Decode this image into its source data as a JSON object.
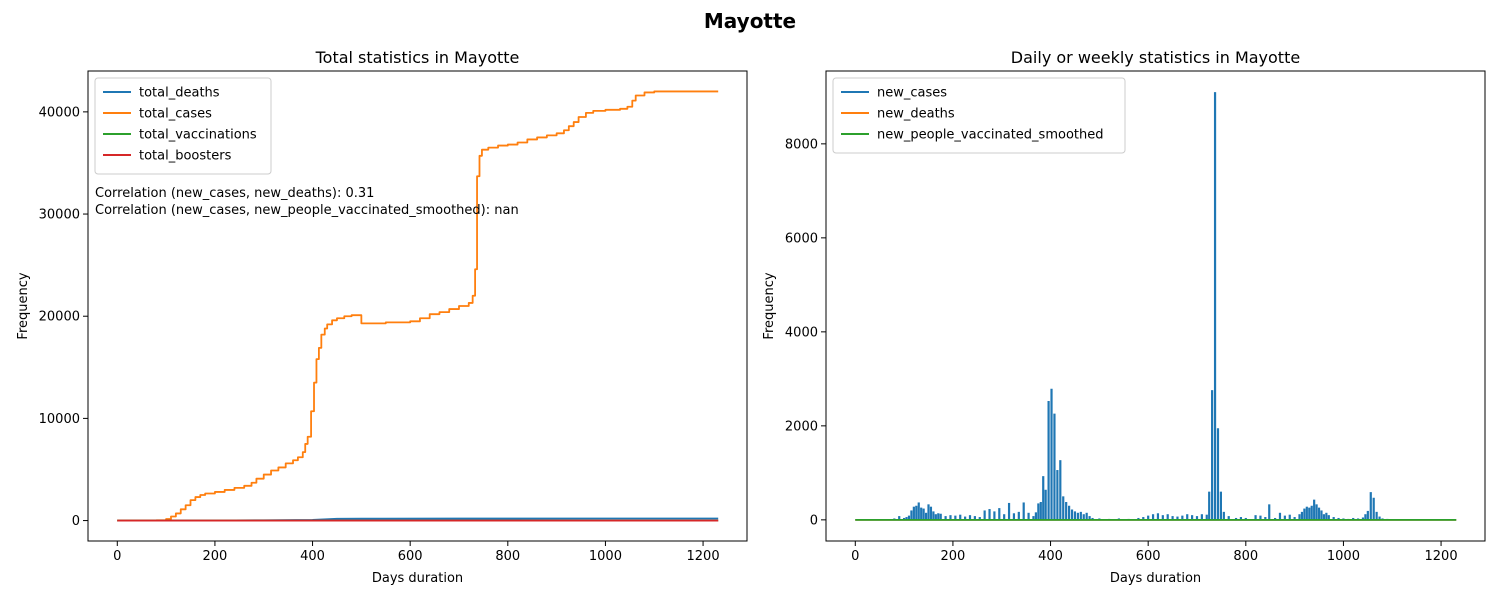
{
  "suptitle": "Mayotte",
  "chart_data": [
    {
      "type": "line",
      "title": "Total statistics in Mayotte",
      "xlabel": "Days duration",
      "ylabel": "Frequency",
      "xlim": [
        -60,
        1290
      ],
      "ylim": [
        -2000,
        44000
      ],
      "xticks": [
        0,
        200,
        400,
        600,
        800,
        1000,
        1200
      ],
      "yticks": [
        0,
        10000,
        20000,
        30000,
        40000
      ],
      "legend_position": "top-left",
      "annotations": [
        "Correlation (new_cases, new_deaths): 0.31",
        "Correlation (new_cases, new_people_vaccinated_smoothed): nan"
      ],
      "series": [
        {
          "name": "total_deaths",
          "color": "#1f77b4",
          "step": false,
          "points": [
            [
              0,
              0
            ],
            [
              100,
              2
            ],
            [
              200,
              10
            ],
            [
              300,
              30
            ],
            [
              400,
              60
            ],
            [
              450,
              170
            ],
            [
              500,
              185
            ],
            [
              700,
              195
            ],
            [
              1000,
              200
            ],
            [
              1231,
              200
            ]
          ]
        },
        {
          "name": "total_cases",
          "color": "#ff7f0e",
          "step": true,
          "points": [
            [
              0,
              0
            ],
            [
              80,
              30
            ],
            [
              100,
              150
            ],
            [
              110,
              400
            ],
            [
              120,
              700
            ],
            [
              130,
              1100
            ],
            [
              140,
              1500
            ],
            [
              150,
              2000
            ],
            [
              160,
              2300
            ],
            [
              170,
              2500
            ],
            [
              180,
              2650
            ],
            [
              200,
              2800
            ],
            [
              220,
              3000
            ],
            [
              240,
              3200
            ],
            [
              260,
              3400
            ],
            [
              275,
              3700
            ],
            [
              285,
              4100
            ],
            [
              300,
              4500
            ],
            [
              315,
              4900
            ],
            [
              330,
              5200
            ],
            [
              345,
              5600
            ],
            [
              360,
              5900
            ],
            [
              370,
              6200
            ],
            [
              380,
              6700
            ],
            [
              385,
              7500
            ],
            [
              390,
              8200
            ],
            [
              397,
              10700
            ],
            [
              403,
              13500
            ],
            [
              408,
              15800
            ],
            [
              413,
              16900
            ],
            [
              418,
              18200
            ],
            [
              425,
              18800
            ],
            [
              430,
              19200
            ],
            [
              440,
              19600
            ],
            [
              450,
              19800
            ],
            [
              465,
              20000
            ],
            [
              480,
              20100
            ],
            [
              497,
              20100
            ],
            [
              500,
              19300
            ],
            [
              550,
              19400
            ],
            [
              600,
              19500
            ],
            [
              620,
              19800
            ],
            [
              640,
              20200
            ],
            [
              660,
              20400
            ],
            [
              680,
              20700
            ],
            [
              700,
              21000
            ],
            [
              720,
              21300
            ],
            [
              728,
              22000
            ],
            [
              733,
              24600
            ],
            [
              737,
              33700
            ],
            [
              742,
              35700
            ],
            [
              747,
              36300
            ],
            [
              760,
              36500
            ],
            [
              780,
              36700
            ],
            [
              800,
              36800
            ],
            [
              820,
              37000
            ],
            [
              840,
              37300
            ],
            [
              860,
              37500
            ],
            [
              880,
              37700
            ],
            [
              900,
              37900
            ],
            [
              915,
              38200
            ],
            [
              925,
              38600
            ],
            [
              935,
              39000
            ],
            [
              945,
              39500
            ],
            [
              960,
              39900
            ],
            [
              975,
              40100
            ],
            [
              1000,
              40200
            ],
            [
              1030,
              40300
            ],
            [
              1045,
              40500
            ],
            [
              1055,
              41100
            ],
            [
              1062,
              41600
            ],
            [
              1080,
              41900
            ],
            [
              1100,
              42000
            ],
            [
              1231,
              42000
            ]
          ]
        },
        {
          "name": "total_vaccinations",
          "color": "#2ca02c",
          "step": false,
          "points": [
            [
              0,
              0
            ],
            [
              1231,
              0
            ]
          ]
        },
        {
          "name": "total_boosters",
          "color": "#d62728",
          "step": false,
          "points": [
            [
              0,
              0
            ],
            [
              1231,
              0
            ]
          ]
        }
      ]
    },
    {
      "type": "line",
      "title": "Daily or weekly statistics in Mayotte",
      "xlabel": "Days duration",
      "ylabel": "Frequency",
      "xlim": [
        -60,
        1290
      ],
      "ylim": [
        -450,
        9550
      ],
      "xticks": [
        0,
        200,
        400,
        600,
        800,
        1000,
        1200
      ],
      "yticks": [
        0,
        2000,
        4000,
        6000,
        8000
      ],
      "legend_position": "top-left",
      "series": [
        {
          "name": "new_cases",
          "color": "#1f77b4",
          "type": "spikes",
          "points": [
            [
              80,
              30
            ],
            [
              90,
              80
            ],
            [
              100,
              40
            ],
            [
              105,
              60
            ],
            [
              110,
              90
            ],
            [
              115,
              200
            ],
            [
              120,
              280
            ],
            [
              125,
              300
            ],
            [
              130,
              370
            ],
            [
              135,
              260
            ],
            [
              140,
              240
            ],
            [
              145,
              150
            ],
            [
              150,
              330
            ],
            [
              155,
              280
            ],
            [
              160,
              180
            ],
            [
              165,
              120
            ],
            [
              170,
              140
            ],
            [
              175,
              130
            ],
            [
              185,
              80
            ],
            [
              195,
              100
            ],
            [
              205,
              90
            ],
            [
              215,
              110
            ],
            [
              225,
              70
            ],
            [
              235,
              100
            ],
            [
              245,
              80
            ],
            [
              255,
              60
            ],
            [
              265,
              200
            ],
            [
              275,
              230
            ],
            [
              285,
              180
            ],
            [
              295,
              250
            ],
            [
              305,
              120
            ],
            [
              315,
              360
            ],
            [
              325,
              140
            ],
            [
              335,
              170
            ],
            [
              345,
              370
            ],
            [
              355,
              150
            ],
            [
              365,
              80
            ],
            [
              370,
              160
            ],
            [
              375,
              350
            ],
            [
              380,
              380
            ],
            [
              385,
              930
            ],
            [
              390,
              640
            ],
            [
              396,
              2530
            ],
            [
              402,
              2790
            ],
            [
              408,
              2260
            ],
            [
              414,
              1060
            ],
            [
              420,
              1270
            ],
            [
              426,
              500
            ],
            [
              432,
              380
            ],
            [
              438,
              300
            ],
            [
              444,
              220
            ],
            [
              450,
              180
            ],
            [
              456,
              150
            ],
            [
              462,
              170
            ],
            [
              468,
              120
            ],
            [
              474,
              150
            ],
            [
              480,
              80
            ],
            [
              486,
              40
            ],
            [
              500,
              30
            ],
            [
              520,
              20
            ],
            [
              540,
              30
            ],
            [
              560,
              20
            ],
            [
              580,
              40
            ],
            [
              590,
              60
            ],
            [
              600,
              90
            ],
            [
              610,
              120
            ],
            [
              620,
              140
            ],
            [
              630,
              100
            ],
            [
              640,
              120
            ],
            [
              650,
              80
            ],
            [
              660,
              70
            ],
            [
              670,
              90
            ],
            [
              680,
              120
            ],
            [
              690,
              100
            ],
            [
              700,
              80
            ],
            [
              710,
              120
            ],
            [
              720,
              110
            ],
            [
              725,
              600
            ],
            [
              731,
              2760
            ],
            [
              737,
              9100
            ],
            [
              743,
              1950
            ],
            [
              749,
              600
            ],
            [
              755,
              170
            ],
            [
              765,
              80
            ],
            [
              780,
              40
            ],
            [
              790,
              60
            ],
            [
              800,
              40
            ],
            [
              820,
              100
            ],
            [
              830,
              90
            ],
            [
              840,
              60
            ],
            [
              848,
              330
            ],
            [
              860,
              40
            ],
            [
              870,
              150
            ],
            [
              880,
              90
            ],
            [
              890,
              110
            ],
            [
              900,
              60
            ],
            [
              910,
              120
            ],
            [
              915,
              170
            ],
            [
              920,
              240
            ],
            [
              925,
              280
            ],
            [
              930,
              260
            ],
            [
              935,
              300
            ],
            [
              940,
              430
            ],
            [
              945,
              330
            ],
            [
              950,
              260
            ],
            [
              955,
              200
            ],
            [
              960,
              120
            ],
            [
              965,
              150
            ],
            [
              970,
              100
            ],
            [
              980,
              60
            ],
            [
              990,
              40
            ],
            [
              1000,
              30
            ],
            [
              1010,
              20
            ],
            [
              1020,
              40
            ],
            [
              1030,
              30
            ],
            [
              1040,
              50
            ],
            [
              1045,
              120
            ],
            [
              1050,
              190
            ],
            [
              1056,
              590
            ],
            [
              1062,
              470
            ],
            [
              1068,
              170
            ],
            [
              1074,
              70
            ],
            [
              1080,
              30
            ],
            [
              1090,
              20
            ],
            [
              1100,
              15
            ]
          ]
        },
        {
          "name": "new_deaths",
          "color": "#ff7f0e",
          "type": "line",
          "points": [
            [
              0,
              0
            ],
            [
              1231,
              0
            ]
          ]
        },
        {
          "name": "new_people_vaccinated_smoothed",
          "color": "#2ca02c",
          "type": "line",
          "points": [
            [
              0,
              0
            ],
            [
              1231,
              0
            ]
          ]
        }
      ]
    }
  ]
}
